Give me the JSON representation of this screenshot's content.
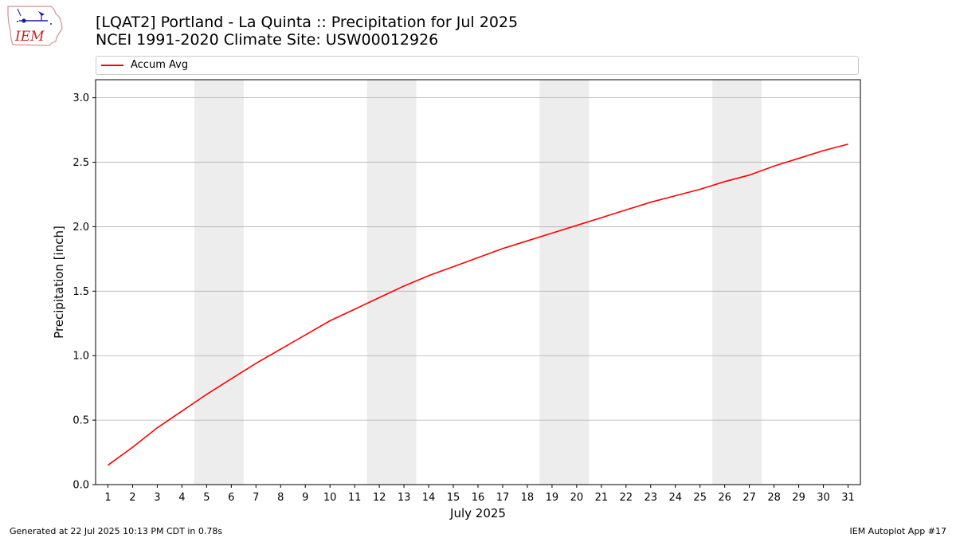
{
  "header": {
    "title_line1": "[LQAT2] Portland - La Quinta :: Precipitation for Jul 2025",
    "title_line2": "NCEI 1991-2020 Climate Site: USW00012926"
  },
  "logo": {
    "text": "IEM",
    "icon": "iem-iowa-logo-icon"
  },
  "footer": {
    "generated": "Generated at 22 Jul 2025 10:13 PM CDT in 0.78s",
    "app": "IEM Autoplot App #17"
  },
  "chart_data": {
    "type": "line",
    "xlabel": "July 2025",
    "ylabel": "Precipitation [inch]",
    "x": [
      1,
      2,
      3,
      4,
      5,
      6,
      7,
      8,
      9,
      10,
      11,
      12,
      13,
      14,
      15,
      16,
      17,
      18,
      19,
      20,
      21,
      22,
      23,
      24,
      25,
      26,
      27,
      28,
      29,
      30,
      31
    ],
    "xlim": [
      0.5,
      31.5
    ],
    "ylim": [
      0,
      3.14
    ],
    "yticks": [
      0.0,
      0.5,
      1.0,
      1.5,
      2.0,
      2.5,
      3.0
    ],
    "ytick_labels": [
      "0.0",
      "0.5",
      "1.0",
      "1.5",
      "2.0",
      "2.5",
      "3.0"
    ],
    "xtick_labels": [
      "1",
      "2",
      "3",
      "4",
      "5",
      "6",
      "7",
      "8",
      "9",
      "10",
      "11",
      "12",
      "13",
      "14",
      "15",
      "16",
      "17",
      "18",
      "19",
      "20",
      "21",
      "22",
      "23",
      "24",
      "25",
      "26",
      "27",
      "28",
      "29",
      "30",
      "31"
    ],
    "grid": "y",
    "legend_position": "top",
    "weekend_bands": [
      [
        5,
        6
      ],
      [
        12,
        13
      ],
      [
        19,
        20
      ],
      [
        26,
        27
      ]
    ],
    "series": [
      {
        "name": "Accum Avg",
        "color": "#ff0000",
        "values": [
          0.15,
          0.29,
          0.44,
          0.57,
          0.7,
          0.82,
          0.94,
          1.05,
          1.16,
          1.27,
          1.36,
          1.45,
          1.54,
          1.62,
          1.69,
          1.76,
          1.83,
          1.89,
          1.95,
          2.01,
          2.07,
          2.13,
          2.19,
          2.24,
          2.29,
          2.35,
          2.4,
          2.47,
          2.53,
          2.59,
          2.64
        ]
      }
    ],
    "colors": {
      "band": "#ededed",
      "grid": "#b0b0b0",
      "axis": "#000000"
    }
  }
}
